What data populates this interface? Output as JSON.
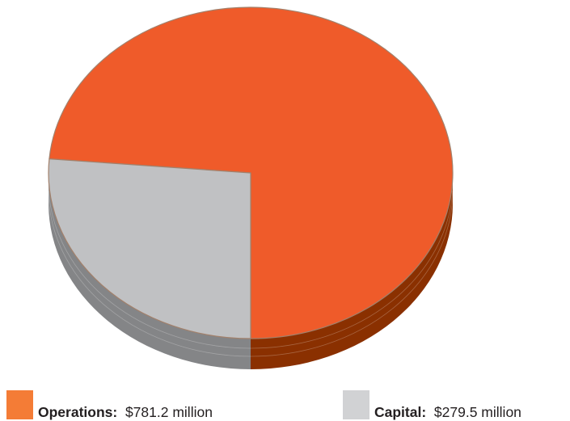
{
  "chart_data": {
    "type": "pie",
    "slices": [
      {
        "label": "Operations",
        "value": 781.2,
        "unit": "million",
        "value_text": "$781.2 million",
        "color": "#ef5b2a",
        "side_color": "#8a3000"
      },
      {
        "label": "Capital",
        "value": 279.5,
        "unit": "million",
        "value_text": "$279.5 million",
        "color": "#c0c1c3",
        "side_color": "#848587"
      }
    ],
    "legend_position": "bottom",
    "style": "3d"
  },
  "legend": {
    "operations": {
      "label": "Operations:",
      "value": "$781.2 million",
      "color": "#f47c36"
    },
    "capital": {
      "label": "Capital:",
      "value": "$279.5 million",
      "color": "#d1d2d4"
    }
  }
}
